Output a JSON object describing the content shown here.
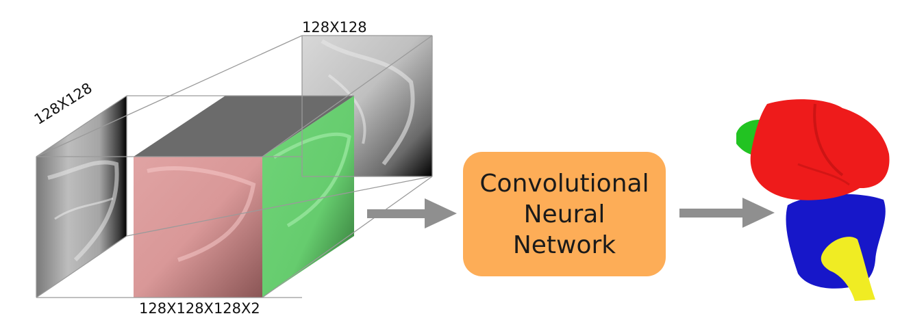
{
  "labels": {
    "top_slice": "128X128",
    "left_slice": "128X128",
    "volume": "128X128X128X2"
  },
  "network": {
    "line1": "Convolutional",
    "line2": "Neural",
    "line3": "Network"
  },
  "colors": {
    "box_fill": "#fdad57",
    "arrow": "#8f8f8f",
    "front_face": "#d98c8c",
    "side_face": "#58c75f",
    "top_face": "#6b6b6b",
    "bone_red": "#ee1b1b",
    "bone_blue": "#1717c9",
    "bone_green": "#22c322",
    "bone_yellow": "#f0ec23"
  }
}
